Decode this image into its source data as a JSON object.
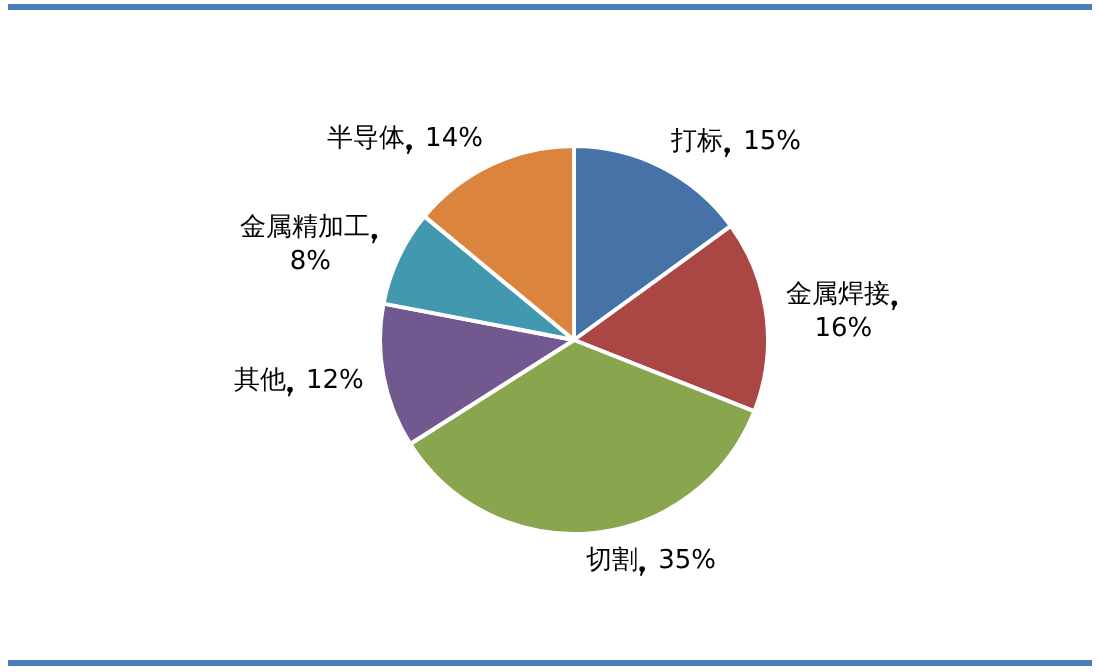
{
  "chart_data": {
    "type": "pie",
    "categories": [
      "打标",
      "金属焊接",
      "切割",
      "其他",
      "金属精加工",
      "半导体"
    ],
    "values": [
      15,
      16,
      35,
      12,
      8,
      14
    ],
    "value_labels": [
      "15%",
      "16%",
      "35%",
      "12%",
      "8%",
      "14%"
    ],
    "colors": [
      "#4572a7",
      "#aa4643",
      "#89a54e",
      "#71588f",
      "#4198af",
      "#db843d"
    ],
    "legend": false
  }
}
